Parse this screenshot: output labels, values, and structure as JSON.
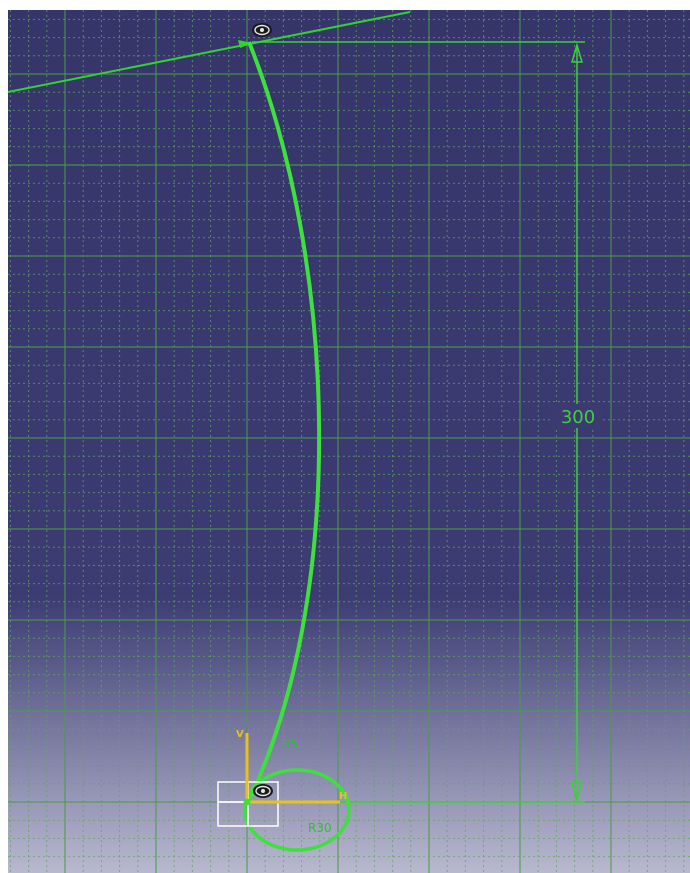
{
  "viewport": {
    "background_top": "#35356a",
    "background_mid": "#3c3c73",
    "background_bottom": "#b8b8cf"
  },
  "grid": {
    "visible": true,
    "minor_color": "#5fa55f",
    "major_color": "#4d9a4d"
  },
  "geometry": {
    "profile_color": "#3ee03e",
    "construction_color": "#2fd42f",
    "dimension_color": "#3ecf3e"
  },
  "dimension": {
    "label": "300"
  },
  "axes": {
    "h_label": "H",
    "v_label": "V",
    "color": "#e8c21a"
  },
  "icons": {
    "top_constraint": "coincidence-constraint-icon",
    "origin_constraint": "coincidence-constraint-icon"
  }
}
